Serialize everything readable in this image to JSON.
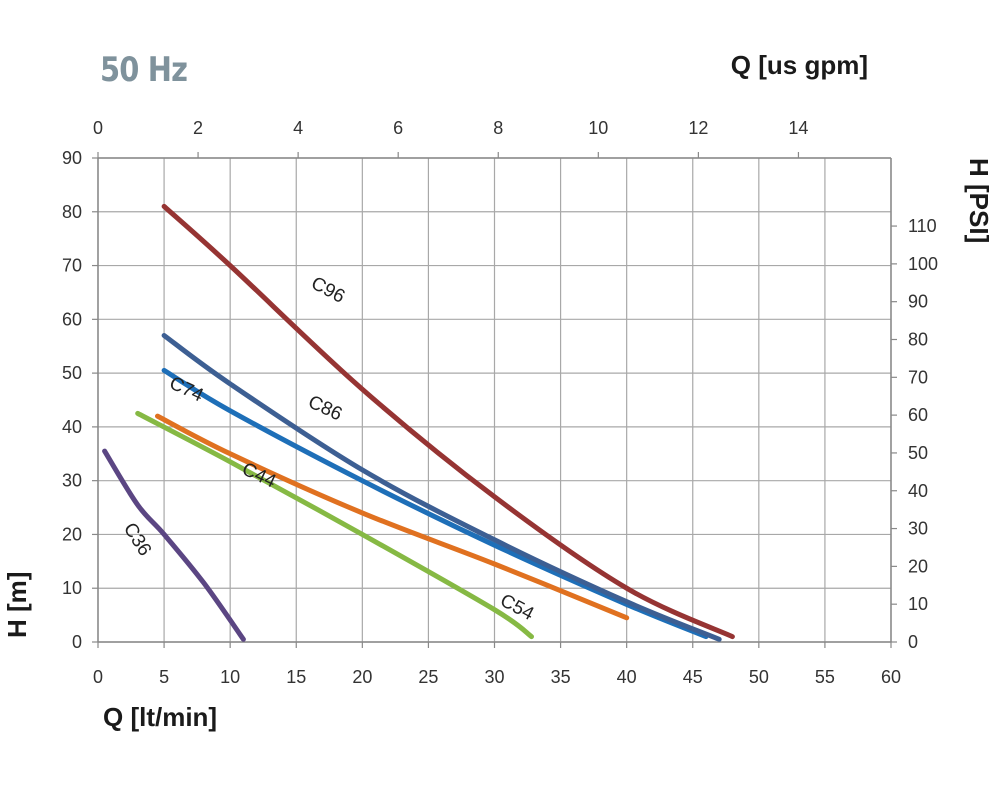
{
  "header": {
    "frequency_label": "50 Hz"
  },
  "chart_data": {
    "type": "line",
    "title": "",
    "xlabel": "Q [lt/min]",
    "ylabel": "H [m]",
    "x2label": "Q [us gpm]",
    "y2label": "H [PSI]",
    "xlim": [
      0,
      60
    ],
    "ylim": [
      0,
      90
    ],
    "x2lim": [
      0,
      15.85
    ],
    "y2lim": [
      0,
      128
    ],
    "xticks": [
      0,
      5,
      10,
      15,
      20,
      25,
      30,
      35,
      40,
      45,
      50,
      55,
      60
    ],
    "yticks": [
      0,
      10,
      20,
      30,
      40,
      50,
      60,
      70,
      80,
      90
    ],
    "x2ticks": [
      0,
      2,
      4,
      6,
      8,
      10,
      12,
      14
    ],
    "y2ticks": [
      0,
      10,
      20,
      30,
      40,
      50,
      60,
      70,
      80,
      90,
      100,
      110
    ],
    "grid": true,
    "series": [
      {
        "name": "C36",
        "color": "#5b4683",
        "x": [
          0.5,
          3,
          5,
          8,
          11
        ],
        "y": [
          35.5,
          25.5,
          20,
          11,
          0.5
        ]
      },
      {
        "name": "C44",
        "color": "#86b944",
        "x": [
          3,
          10,
          20,
          30,
          32.8
        ],
        "y": [
          42.5,
          33.5,
          20,
          6,
          1
        ]
      },
      {
        "name": "C54",
        "color": "#e07120",
        "x": [
          4.5,
          10,
          20,
          30,
          40
        ],
        "y": [
          42,
          35,
          24,
          14.5,
          4.5
        ]
      },
      {
        "name": "C74",
        "color": "#1e6fb8",
        "x": [
          5,
          10,
          20,
          30,
          40,
          46
        ],
        "y": [
          50.5,
          43,
          30,
          18,
          7,
          1
        ]
      },
      {
        "name": "C86",
        "color": "#3d5f93",
        "x": [
          5,
          10,
          20,
          30,
          40,
          47
        ],
        "y": [
          57,
          48,
          32,
          19,
          7.5,
          0.5
        ]
      },
      {
        "name": "C96",
        "color": "#963433",
        "x": [
          5,
          10,
          20,
          30,
          40,
          48
        ],
        "y": [
          81,
          70,
          47,
          27,
          10,
          1
        ]
      }
    ]
  }
}
